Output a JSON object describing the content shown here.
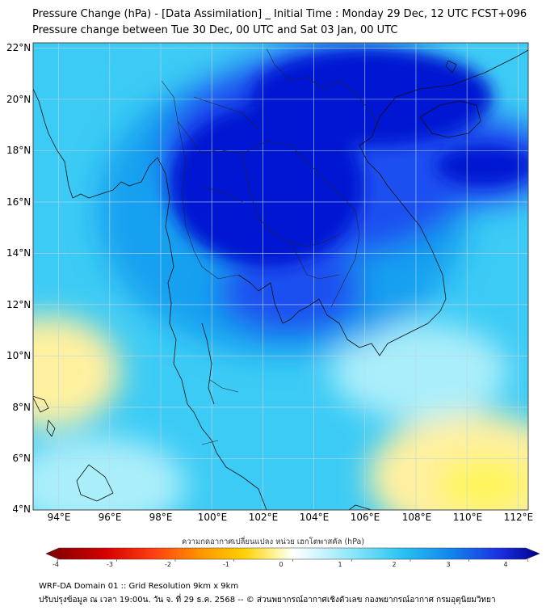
{
  "title": {
    "line1": "Pressure Change (hPa) - [Data Assimilation] _ Initial Time : Monday 29 Dec, 12 UTC FCST+096",
    "line2": "Pressure change between Tue 30 Dec, 00 UTC and Sat 03 Jan, 00 UTC"
  },
  "map": {
    "lat_labels": [
      "22°N",
      "20°N",
      "18°N",
      "16°N",
      "14°N",
      "12°N",
      "10°N",
      "8°N",
      "6°N",
      "4°N"
    ],
    "lon_labels": [
      "94°E",
      "96°E",
      "98°E",
      "100°E",
      "102°E",
      "104°E",
      "106°E",
      "108°E",
      "110°E",
      "112°E"
    ],
    "lat_range": [
      4,
      22.2
    ],
    "lon_range": [
      93,
      112.4
    ],
    "colors": {
      "deep_fall": "#0014d2",
      "strong_fall": "#1e50f0",
      "moderate_fall": "#14a0f0",
      "weak_fall": "#3ccbf5",
      "slight_fall": "#aaeefa",
      "neutral": "#ffffe6",
      "slight_rise": "#fff0a0",
      "rise": "#fff55a"
    }
  },
  "colorbar": {
    "caption": "ความกดอากาศเปลี่ยนแปลง หน่วย เฮกโตพาสคัล (hPa)",
    "ticks": [
      "-4",
      "-3",
      "-2",
      "-1",
      "0",
      "1",
      "2",
      "3",
      "4"
    ],
    "range": [
      -4.2,
      4.2
    ]
  },
  "footer": {
    "line1": "WRF-DA Domain 01 :: Grid Resolution 9km x 9km",
    "line2": "ปรับปรุงข้อมูล ณ เวลา 19:00น. วัน จ. ที่ 29 ธ.ค. 2568 -- © ส่วนพยากรณ์อากาศเชิงตัวเลข กองพยากรณ์อากาศ กรมอุตุนิยมวิทยา"
  }
}
